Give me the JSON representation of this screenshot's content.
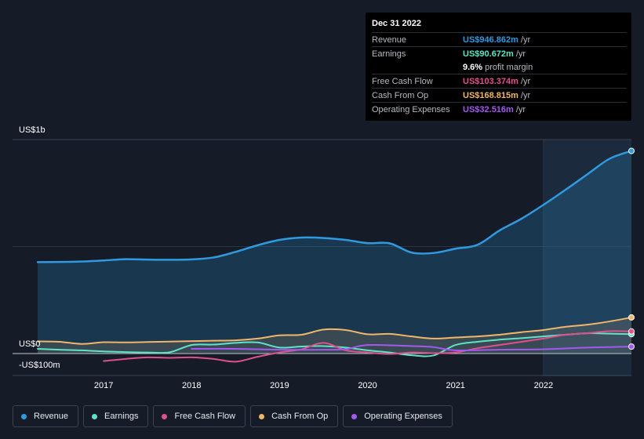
{
  "tooltip": {
    "date": "Dec 31 2022",
    "rows": [
      {
        "label": "Revenue",
        "value": "US$946.862m",
        "unit": "/yr",
        "color": "#2f9ae0"
      },
      {
        "label": "Earnings",
        "value": "US$90.672m",
        "unit": "/yr",
        "color": "#5ee3c6"
      },
      {
        "label": "",
        "value": "9.6%",
        "unit": "profit margin",
        "color": "#ffffff"
      },
      {
        "label": "Free Cash Flow",
        "value": "US$103.374m",
        "unit": "/yr",
        "color": "#e0508a"
      },
      {
        "label": "Cash From Op",
        "value": "US$168.815m",
        "unit": "/yr",
        "color": "#f0b66a"
      },
      {
        "label": "Operating Expenses",
        "value": "US$32.516m",
        "unit": "/yr",
        "color": "#a259f0"
      }
    ]
  },
  "chart_data": {
    "type": "area",
    "y_tick_labels": [
      "US$1b",
      "US$0",
      "-US$100m"
    ],
    "x_tick_labels": [
      "2017",
      "2018",
      "2019",
      "2020",
      "2021",
      "2022"
    ],
    "ylim": [
      -100,
      1000
    ],
    "xlim": [
      2016.25,
      2023.0
    ],
    "highlight_from": 2022.0,
    "legend_position": "bottom",
    "series": [
      {
        "name": "Revenue",
        "color": "#2f9ae0",
        "fill": true,
        "x": [
          2016.25,
          2016.5,
          2016.75,
          2017.0,
          2017.25,
          2017.5,
          2017.75,
          2018.0,
          2018.25,
          2018.5,
          2018.75,
          2019.0,
          2019.25,
          2019.5,
          2019.75,
          2020.0,
          2020.25,
          2020.5,
          2020.75,
          2021.0,
          2021.25,
          2021.5,
          2021.75,
          2022.0,
          2022.25,
          2022.5,
          2022.75,
          2023.0
        ],
        "y": [
          427,
          428,
          430,
          435,
          441,
          439,
          438,
          440,
          449,
          475,
          506,
          531,
          542,
          540,
          531,
          516,
          515,
          472,
          470,
          490,
          508,
          575,
          630,
          695,
          765,
          838,
          910,
          946.862
        ]
      },
      {
        "name": "Earnings",
        "color": "#5ee3c6",
        "fill": false,
        "x": [
          2016.25,
          2016.5,
          2016.75,
          2017.0,
          2017.25,
          2017.5,
          2017.75,
          2018.0,
          2018.25,
          2018.5,
          2018.75,
          2019.0,
          2019.25,
          2019.5,
          2019.75,
          2020.0,
          2020.25,
          2020.5,
          2020.75,
          2021.0,
          2021.25,
          2021.5,
          2021.75,
          2022.0,
          2022.25,
          2022.5,
          2022.75,
          2023.0
        ],
        "y": [
          22,
          18,
          15,
          10,
          7,
          5,
          6,
          40,
          42,
          50,
          52,
          28,
          33,
          35,
          28,
          15,
          5,
          -8,
          -9,
          40,
          55,
          65,
          72,
          80,
          88,
          95,
          93,
          90.672
        ]
      },
      {
        "name": "Free Cash Flow",
        "color": "#e0508a",
        "fill": false,
        "x": [
          2017.0,
          2017.25,
          2017.5,
          2017.75,
          2018.0,
          2018.25,
          2018.5,
          2018.75,
          2019.0,
          2019.25,
          2019.5,
          2019.75,
          2020.0,
          2020.25,
          2020.5,
          2020.75,
          2021.0,
          2021.25,
          2021.5,
          2021.75,
          2022.0,
          2022.25,
          2022.5,
          2022.75,
          2023.0
        ],
        "y": [
          -35,
          -25,
          -18,
          -20,
          -18,
          -25,
          -38,
          -15,
          5,
          20,
          50,
          15,
          5,
          -2,
          5,
          2,
          5,
          25,
          40,
          55,
          70,
          88,
          95,
          105,
          103.374
        ]
      },
      {
        "name": "Cash From Op",
        "color": "#f0b66a",
        "fill": true,
        "x": [
          2016.25,
          2016.5,
          2016.75,
          2017.0,
          2017.25,
          2017.5,
          2017.75,
          2018.0,
          2018.25,
          2018.5,
          2018.75,
          2019.0,
          2019.25,
          2019.5,
          2019.75,
          2020.0,
          2020.25,
          2020.5,
          2020.75,
          2021.0,
          2021.25,
          2021.5,
          2021.75,
          2022.0,
          2022.25,
          2022.5,
          2022.75,
          2023.0
        ],
        "y": [
          57,
          55,
          45,
          53,
          52,
          54,
          56,
          58,
          60,
          62,
          70,
          85,
          88,
          112,
          110,
          90,
          92,
          80,
          70,
          75,
          80,
          88,
          100,
          110,
          125,
          135,
          150,
          168.815
        ]
      },
      {
        "name": "Operating Expenses",
        "color": "#a259f0",
        "fill": false,
        "x": [
          2018.0,
          2018.5,
          2019.0,
          2019.5,
          2019.75,
          2020.0,
          2020.5,
          2020.75,
          2021.0,
          2021.5,
          2022.0,
          2022.5,
          2023.0
        ],
        "y": [
          22,
          22,
          18,
          18,
          20,
          40,
          35,
          30,
          15,
          18,
          20,
          28,
          32.516
        ]
      }
    ]
  }
}
